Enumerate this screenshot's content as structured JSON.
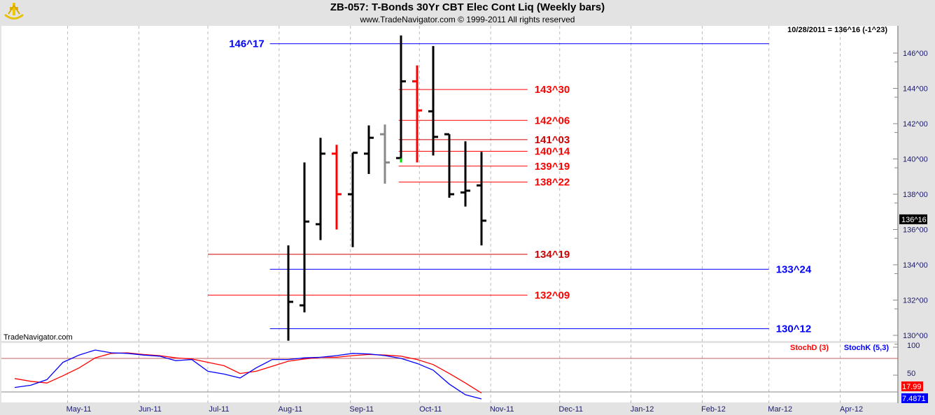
{
  "header": {
    "title": "ZB-057:  T-Bonds 30Yr CBT Elec Cont Liq  (Weekly bars)",
    "subtitle": "www.TradeNavigator.com © 1999-2011 All rights reserved"
  },
  "chart_data": {
    "type": "ohlc",
    "last_readout": "10/28/2011 = 136^16 (-1^23)",
    "watermark": "TradeNavigator.com",
    "current_price_label": "136^16",
    "y_ticks": [
      "146^00",
      "144^00",
      "142^00",
      "140^00",
      "138^00",
      "136^00",
      "134^00",
      "132^00",
      "130^00"
    ],
    "x_ticks": [
      {
        "date": "2011-05-01",
        "label": "May-11"
      },
      {
        "date": "2011-06-01",
        "label": "Jun-11"
      },
      {
        "date": "2011-07-01",
        "label": "Jul-11"
      },
      {
        "date": "2011-08-01",
        "label": "Aug-11"
      },
      {
        "date": "2011-09-01",
        "label": "Sep-11"
      },
      {
        "date": "2011-10-01",
        "label": "Oct-11"
      },
      {
        "date": "2011-11-01",
        "label": "Nov-11"
      },
      {
        "date": "2011-12-01",
        "label": "Dec-11"
      },
      {
        "date": "2012-01-01",
        "label": "Jan-12"
      },
      {
        "date": "2012-02-01",
        "label": "Feb-12"
      },
      {
        "date": "2012-03-01",
        "label": "Mar-12"
      },
      {
        "date": "2012-04-01",
        "label": "Apr-12"
      }
    ],
    "bars": [
      {
        "date": "2011-08-05",
        "open": null,
        "high": 135.1,
        "low": 129.7,
        "close": 131.9,
        "color": "#000000"
      },
      {
        "date": "2011-08-12",
        "open": 131.7,
        "high": 139.8,
        "low": 131.3,
        "close": 136.45,
        "color": "#000000"
      },
      {
        "date": "2011-08-19",
        "open": 136.3,
        "high": 141.2,
        "low": 135.4,
        "close": 140.3,
        "color": "#000000"
      },
      {
        "date": "2011-08-26",
        "open": 140.3,
        "high": 140.8,
        "low": 136.0,
        "close": 138.0,
        "color": "#ff0000"
      },
      {
        "date": "2011-09-02",
        "open": 138.0,
        "high": 140.35,
        "low": 135.0,
        "close": 140.35,
        "color": "#000000"
      },
      {
        "date": "2011-09-09",
        "open": 140.3,
        "high": 141.9,
        "low": 139.15,
        "close": 141.2,
        "color": "#000000"
      },
      {
        "date": "2011-09-16",
        "open": 141.4,
        "high": 141.95,
        "low": 138.6,
        "close": 139.8,
        "color": "#888888"
      },
      {
        "date": "2011-09-23",
        "open": 140.05,
        "high": 147.0,
        "low": 139.8,
        "close": 144.4,
        "color": "#000000",
        "marker": "#00dd00"
      },
      {
        "date": "2011-09-30",
        "open": 144.4,
        "high": 145.3,
        "low": 139.8,
        "close": 142.75,
        "color": "#ff0000"
      },
      {
        "date": "2011-10-07",
        "open": 142.7,
        "high": 146.4,
        "low": 140.2,
        "close": 141.25,
        "color": "#000000"
      },
      {
        "date": "2011-10-14",
        "open": 141.4,
        "high": 141.4,
        "low": 137.8,
        "close": 138.0,
        "color": "#000000"
      },
      {
        "date": "2011-10-21",
        "open": 138.1,
        "high": 141.0,
        "low": 137.3,
        "close": 138.2,
        "color": "#000000"
      },
      {
        "date": "2011-10-28",
        "open": 138.5,
        "high": 140.4,
        "low": 135.1,
        "close": 136.5,
        "color": "#000000"
      }
    ],
    "levels": [
      {
        "label": "146^17",
        "color": "#0000ff",
        "from": "2011-07-28",
        "to": "2012-03-01",
        "label_side": "left"
      },
      {
        "label": "143^30",
        "color": "#ff0000",
        "from": "2011-09-22",
        "to": "2011-11-17",
        "label_side": "right"
      },
      {
        "label": "142^06",
        "color": "#ff0000",
        "from": "2011-09-22",
        "to": "2011-11-17",
        "label_side": "right"
      },
      {
        "label": "141^03",
        "color": "#cc0000",
        "from": "2011-09-22",
        "to": "2011-11-17",
        "label_side": "right"
      },
      {
        "label": "140^14",
        "color": "#ff0000",
        "from": "2011-09-22",
        "to": "2011-11-17",
        "label_side": "right"
      },
      {
        "label": "139^19",
        "color": "#ff0000",
        "from": "2011-09-22",
        "to": "2011-11-17",
        "label_side": "right"
      },
      {
        "label": "138^22",
        "color": "#ff0000",
        "from": "2011-09-22",
        "to": "2011-11-17",
        "label_side": "right"
      },
      {
        "label": "134^19",
        "color": "#cc0000",
        "from": "2011-07-01",
        "to": "2011-11-17",
        "label_side": "right"
      },
      {
        "label": "133^24",
        "color": "#0000ff",
        "from": "2011-07-28",
        "to": "2012-03-01",
        "label_side": "right"
      },
      {
        "label": "132^09",
        "color": "#ff0000",
        "from": "2011-07-01",
        "to": "2011-11-17",
        "label_side": "right"
      },
      {
        "label": "130^12",
        "color": "#0000ff",
        "from": "2011-07-28",
        "to": "2012-03-01",
        "label_side": "right"
      }
    ],
    "stochastic": {
      "legend": [
        {
          "name": "StochD (3)",
          "color": "#ff0000"
        },
        {
          "name": "StochK (5,3)",
          "color": "#0000ff"
        }
      ],
      "y_ticks": [
        "100",
        "50"
      ],
      "reference_lines": [
        80,
        20
      ],
      "ylim": [
        0,
        100
      ],
      "start_date": "2011-04-08",
      "K": [
        28,
        32,
        42,
        73,
        86,
        95,
        90,
        89,
        86,
        84,
        76,
        78,
        57,
        52,
        45,
        63,
        78,
        78,
        81,
        82,
        85,
        89,
        88,
        85,
        80,
        71,
        59,
        34,
        15,
        7.4871
      ],
      "D": [
        44,
        39,
        36,
        49,
        63,
        81,
        89,
        90,
        87,
        85,
        81,
        79,
        73,
        67,
        53,
        57,
        66,
        75,
        79,
        82,
        82,
        85,
        87,
        86,
        84,
        78,
        69,
        53,
        36,
        17.99
      ],
      "K_label": "7.4871",
      "D_label": "17.99"
    }
  }
}
